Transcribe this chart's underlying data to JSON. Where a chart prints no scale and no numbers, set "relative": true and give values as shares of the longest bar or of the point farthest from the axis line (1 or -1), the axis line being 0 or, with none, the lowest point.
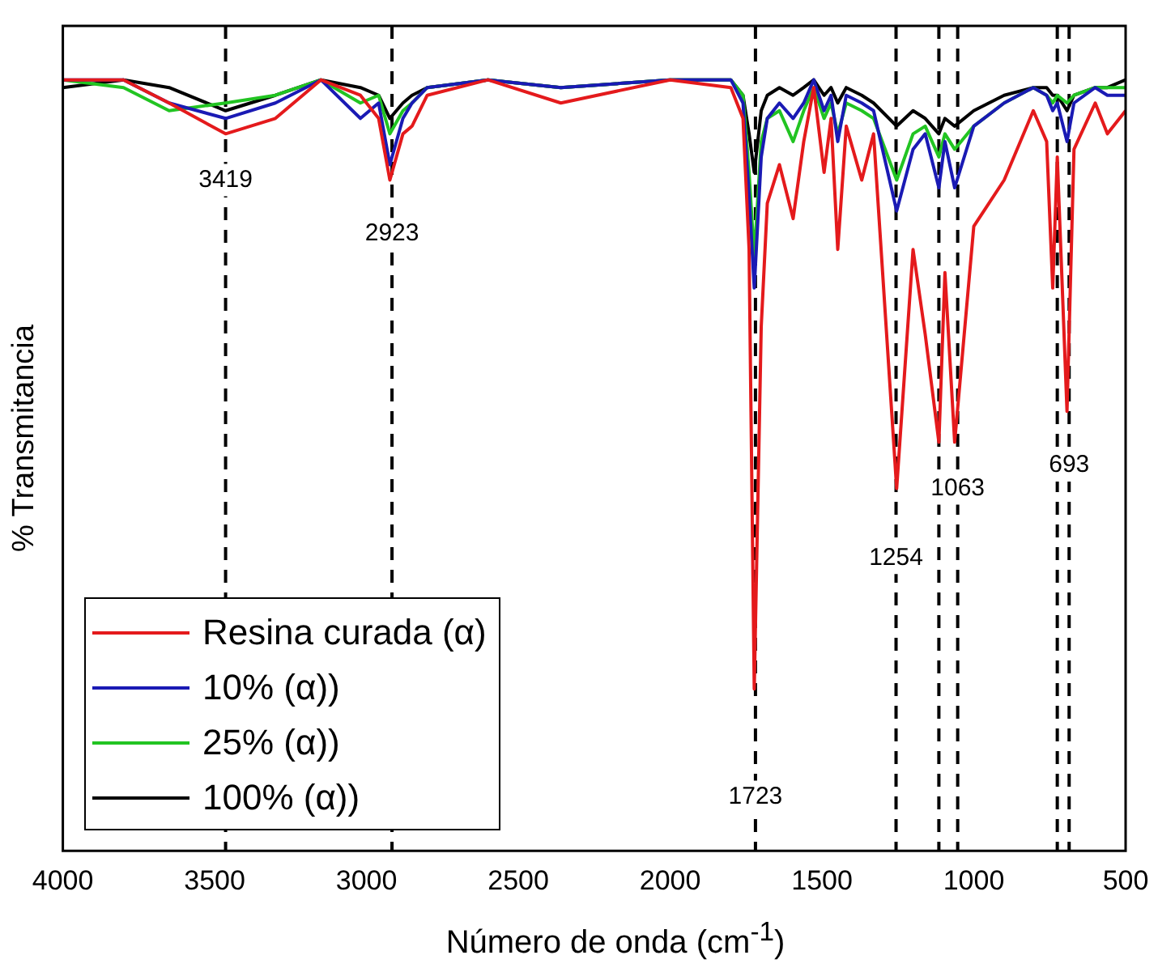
{
  "chart_data": {
    "type": "line",
    "xlabel": "Número de onda (cm$^{-1}$)",
    "ylabel": "% Transmitancia",
    "relative": true,
    "xlim": [
      4000,
      500
    ],
    "xticks": [
      4000,
      3500,
      3000,
      2500,
      2000,
      1500,
      1000,
      500
    ],
    "grid": false,
    "legend": "bottom left",
    "marker": "none",
    "line_style": "solid",
    "x": [
      4000,
      3800,
      3650,
      3464,
      3300,
      3150,
      3020,
      2960,
      2923,
      2880,
      2850,
      2800,
      2600,
      2360,
      2000,
      1800,
      1760,
      1740,
      1723,
      1700,
      1680,
      1640,
      1595,
      1560,
      1527,
      1493,
      1470,
      1448,
      1420,
      1369,
      1330,
      1254,
      1200,
      1160,
      1115,
      1095,
      1063,
      1000,
      900,
      804,
      760,
      740,
      725,
      693,
      670,
      600,
      560,
      500
    ],
    "series": [
      {
        "name": "Resina curada (α)",
        "color": "#e41a1c",
        "values": [
          1.0,
          1.0,
          0.97,
          0.93,
          0.95,
          1.0,
          0.98,
          0.95,
          0.87,
          0.93,
          0.94,
          0.98,
          1.0,
          0.97,
          1.0,
          0.99,
          0.95,
          0.78,
          0.21,
          0.68,
          0.84,
          0.89,
          0.82,
          0.92,
          0.99,
          0.88,
          0.95,
          0.78,
          0.94,
          0.87,
          0.93,
          0.47,
          0.78,
          0.67,
          0.53,
          0.75,
          0.53,
          0.81,
          0.87,
          0.96,
          0.92,
          0.73,
          0.9,
          0.57,
          0.91,
          0.97,
          0.93,
          0.96
        ]
      },
      {
        "name": "10% (α))",
        "color": "#1a1ab4",
        "values": [
          1.0,
          1.0,
          0.97,
          0.95,
          0.97,
          1.0,
          0.95,
          0.97,
          0.89,
          0.95,
          0.97,
          0.99,
          1.0,
          0.99,
          1.0,
          1.0,
          0.97,
          0.85,
          0.73,
          0.9,
          0.95,
          0.97,
          0.95,
          0.97,
          1.0,
          0.96,
          0.98,
          0.92,
          0.98,
          0.97,
          0.96,
          0.83,
          0.91,
          0.93,
          0.86,
          0.92,
          0.86,
          0.94,
          0.97,
          0.99,
          0.98,
          0.96,
          0.97,
          0.92,
          0.97,
          0.99,
          0.98,
          0.98
        ]
      },
      {
        "name": "25% (α))",
        "color": "#22c422",
        "values": [
          1.0,
          0.99,
          0.96,
          0.97,
          0.98,
          1.0,
          0.97,
          0.98,
          0.93,
          0.96,
          0.97,
          0.99,
          1.0,
          0.99,
          1.0,
          1.0,
          0.98,
          0.88,
          0.77,
          0.92,
          0.95,
          0.96,
          0.92,
          0.96,
          0.99,
          0.95,
          0.97,
          0.93,
          0.97,
          0.96,
          0.95,
          0.87,
          0.93,
          0.94,
          0.9,
          0.93,
          0.91,
          0.94,
          0.97,
          0.99,
          0.98,
          0.97,
          0.98,
          0.97,
          0.98,
          0.99,
          0.99,
          0.99
        ]
      },
      {
        "name": "100% (α))",
        "color": "#000000",
        "values": [
          0.99,
          1.0,
          0.99,
          0.96,
          0.98,
          1.0,
          0.99,
          0.98,
          0.95,
          0.97,
          0.98,
          0.99,
          1.0,
          0.99,
          1.0,
          1.0,
          0.98,
          0.93,
          0.88,
          0.96,
          0.98,
          0.99,
          0.98,
          0.99,
          1.0,
          0.98,
          0.99,
          0.97,
          0.99,
          0.98,
          0.97,
          0.94,
          0.96,
          0.95,
          0.93,
          0.95,
          0.94,
          0.96,
          0.98,
          0.99,
          0.99,
          0.98,
          0.98,
          0.96,
          0.98,
          0.99,
          0.99,
          1.0
        ]
      }
    ],
    "ref_lines": [
      {
        "axis": "x",
        "value": 3464,
        "color": "#000000",
        "line_style": "dashed"
      },
      {
        "axis": "x",
        "value": 2916,
        "color": "#000000",
        "line_style": "dashed"
      },
      {
        "axis": "x",
        "value": 1719,
        "color": "#000000",
        "line_style": "dashed"
      },
      {
        "axis": "x",
        "value": 1256,
        "color": "#000000",
        "line_style": "dashed"
      },
      {
        "axis": "x",
        "value": 1115,
        "color": "#000000",
        "line_style": "dashed"
      },
      {
        "axis": "x",
        "value": 1053,
        "color": "#000000",
        "line_style": "dashed"
      },
      {
        "axis": "x",
        "value": 725,
        "color": "#000000",
        "line_style": "dashed"
      },
      {
        "axis": "x",
        "value": 686,
        "color": "#000000",
        "line_style": "dashed"
      }
    ],
    "annotations": [
      {
        "text": "3419",
        "x": 3464,
        "y": 0.87
      },
      {
        "text": "2923",
        "x": 2916,
        "y": 0.8
      },
      {
        "text": "1723",
        "x": 1719,
        "y": 0.07
      },
      {
        "text": "1254",
        "x": 1256,
        "y": 0.38
      },
      {
        "text": "1063",
        "x": 1053,
        "y": 0.47
      },
      {
        "text": "693",
        "x": 686,
        "y": 0.5
      }
    ]
  }
}
